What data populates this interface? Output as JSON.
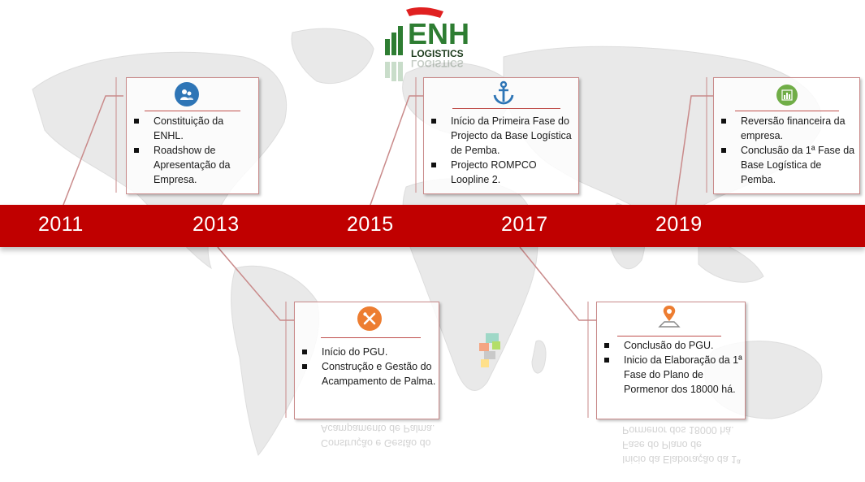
{
  "logo": {
    "main": "ENH",
    "sub": "LOGISTICS"
  },
  "timeline": {
    "years": [
      "2011",
      "2013",
      "2015",
      "2017",
      "2019"
    ]
  },
  "cards": {
    "c2011": {
      "icon": "people-settings-icon",
      "items": [
        "Constituição da ENHL.",
        "Roadshow de Apresentação da Empresa."
      ]
    },
    "c2013": {
      "icon": "tools-icon",
      "items": [
        "Início do PGU.",
        "Construção e Gestão do Acampamento de Palma."
      ]
    },
    "c2015": {
      "icon": "anchor-icon",
      "items": [
        "Início da Primeira Fase do Projecto da Base Logística de Pemba.",
        "Projecto ROMPCO Loopline 2."
      ]
    },
    "c2017": {
      "icon": "map-pin-icon",
      "items": [
        "Conclusão do PGU.",
        "Inicio da Elaboração da 1ª Fase do Plano de Pormenor dos 18000 há."
      ]
    },
    "c2019": {
      "icon": "chart-icon",
      "items": [
        "Reversão financeira da empresa.",
        "Conclusão da 1ª Fase da Base Logística de Pemba."
      ]
    }
  },
  "colors": {
    "band": "#c00000",
    "accent_rule": "#c0504d",
    "icon_blue": "#2e75b6",
    "icon_orange": "#ed7d31",
    "icon_green": "#70ad47",
    "logo_green": "#2e7d32",
    "logo_red": "#e02020"
  }
}
